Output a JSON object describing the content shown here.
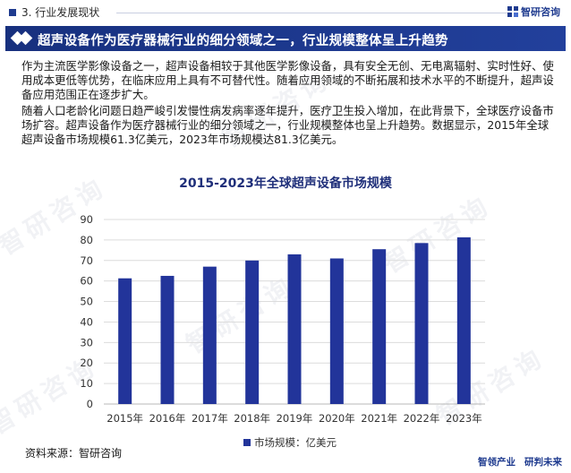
{
  "header": {
    "section": "3. 行业发展现状",
    "brand": "智研咨询"
  },
  "banner": {
    "title": "超声设备作为医疗器械行业的细分领域之一，行业规模整体呈上升趋势"
  },
  "body": {
    "paragraph1": "作为主流医学影像设备之一，超声设备相较于其他医学影像设备，具有安全无创、无电离辐射、实时性好、使用成本更低等优势，在临床应用上具有不可替代性。随着应用领域的不断拓展和技术水平的不断提升，超声设备应用范围正在逐步扩大。",
    "paragraph2": "随着人口老龄化问题日趋严峻引发慢性病发病率逐年提升，医疗卫生投入增加，在此背景下，全球医疗设备市场扩容。超声设备作为医疗器械行业的细分领域之一，行业规模整体也呈上升趋势。数据显示，2015年全球超声设备市场规模61.3亿美元，2023年市场规模达81.3亿美元。"
  },
  "source": "资料来源：智研咨询",
  "footer": {
    "left": "智领产业",
    "right": "研判未来"
  },
  "watermark": "智研咨询",
  "colors": {
    "brand": "#1f3b8f",
    "bar": "#22349a",
    "grid": "#dcdcdc"
  },
  "chart_data": {
    "type": "bar",
    "title": "2015-2023年全球超声设备市场规模",
    "categories": [
      "2015年",
      "2016年",
      "2017年",
      "2018年",
      "2019年",
      "2020年",
      "2021年",
      "2022年",
      "2023年"
    ],
    "series": [
      {
        "name": "市场规模：亿美元",
        "values": [
          61.3,
          62.5,
          67.0,
          70.0,
          73.0,
          71.0,
          75.5,
          78.5,
          81.3
        ]
      }
    ],
    "yticks": [
      0,
      10,
      20,
      30,
      40,
      50,
      60,
      70,
      80,
      90
    ],
    "ylim": [
      0,
      90
    ],
    "grid": true,
    "legend": "bottom"
  }
}
